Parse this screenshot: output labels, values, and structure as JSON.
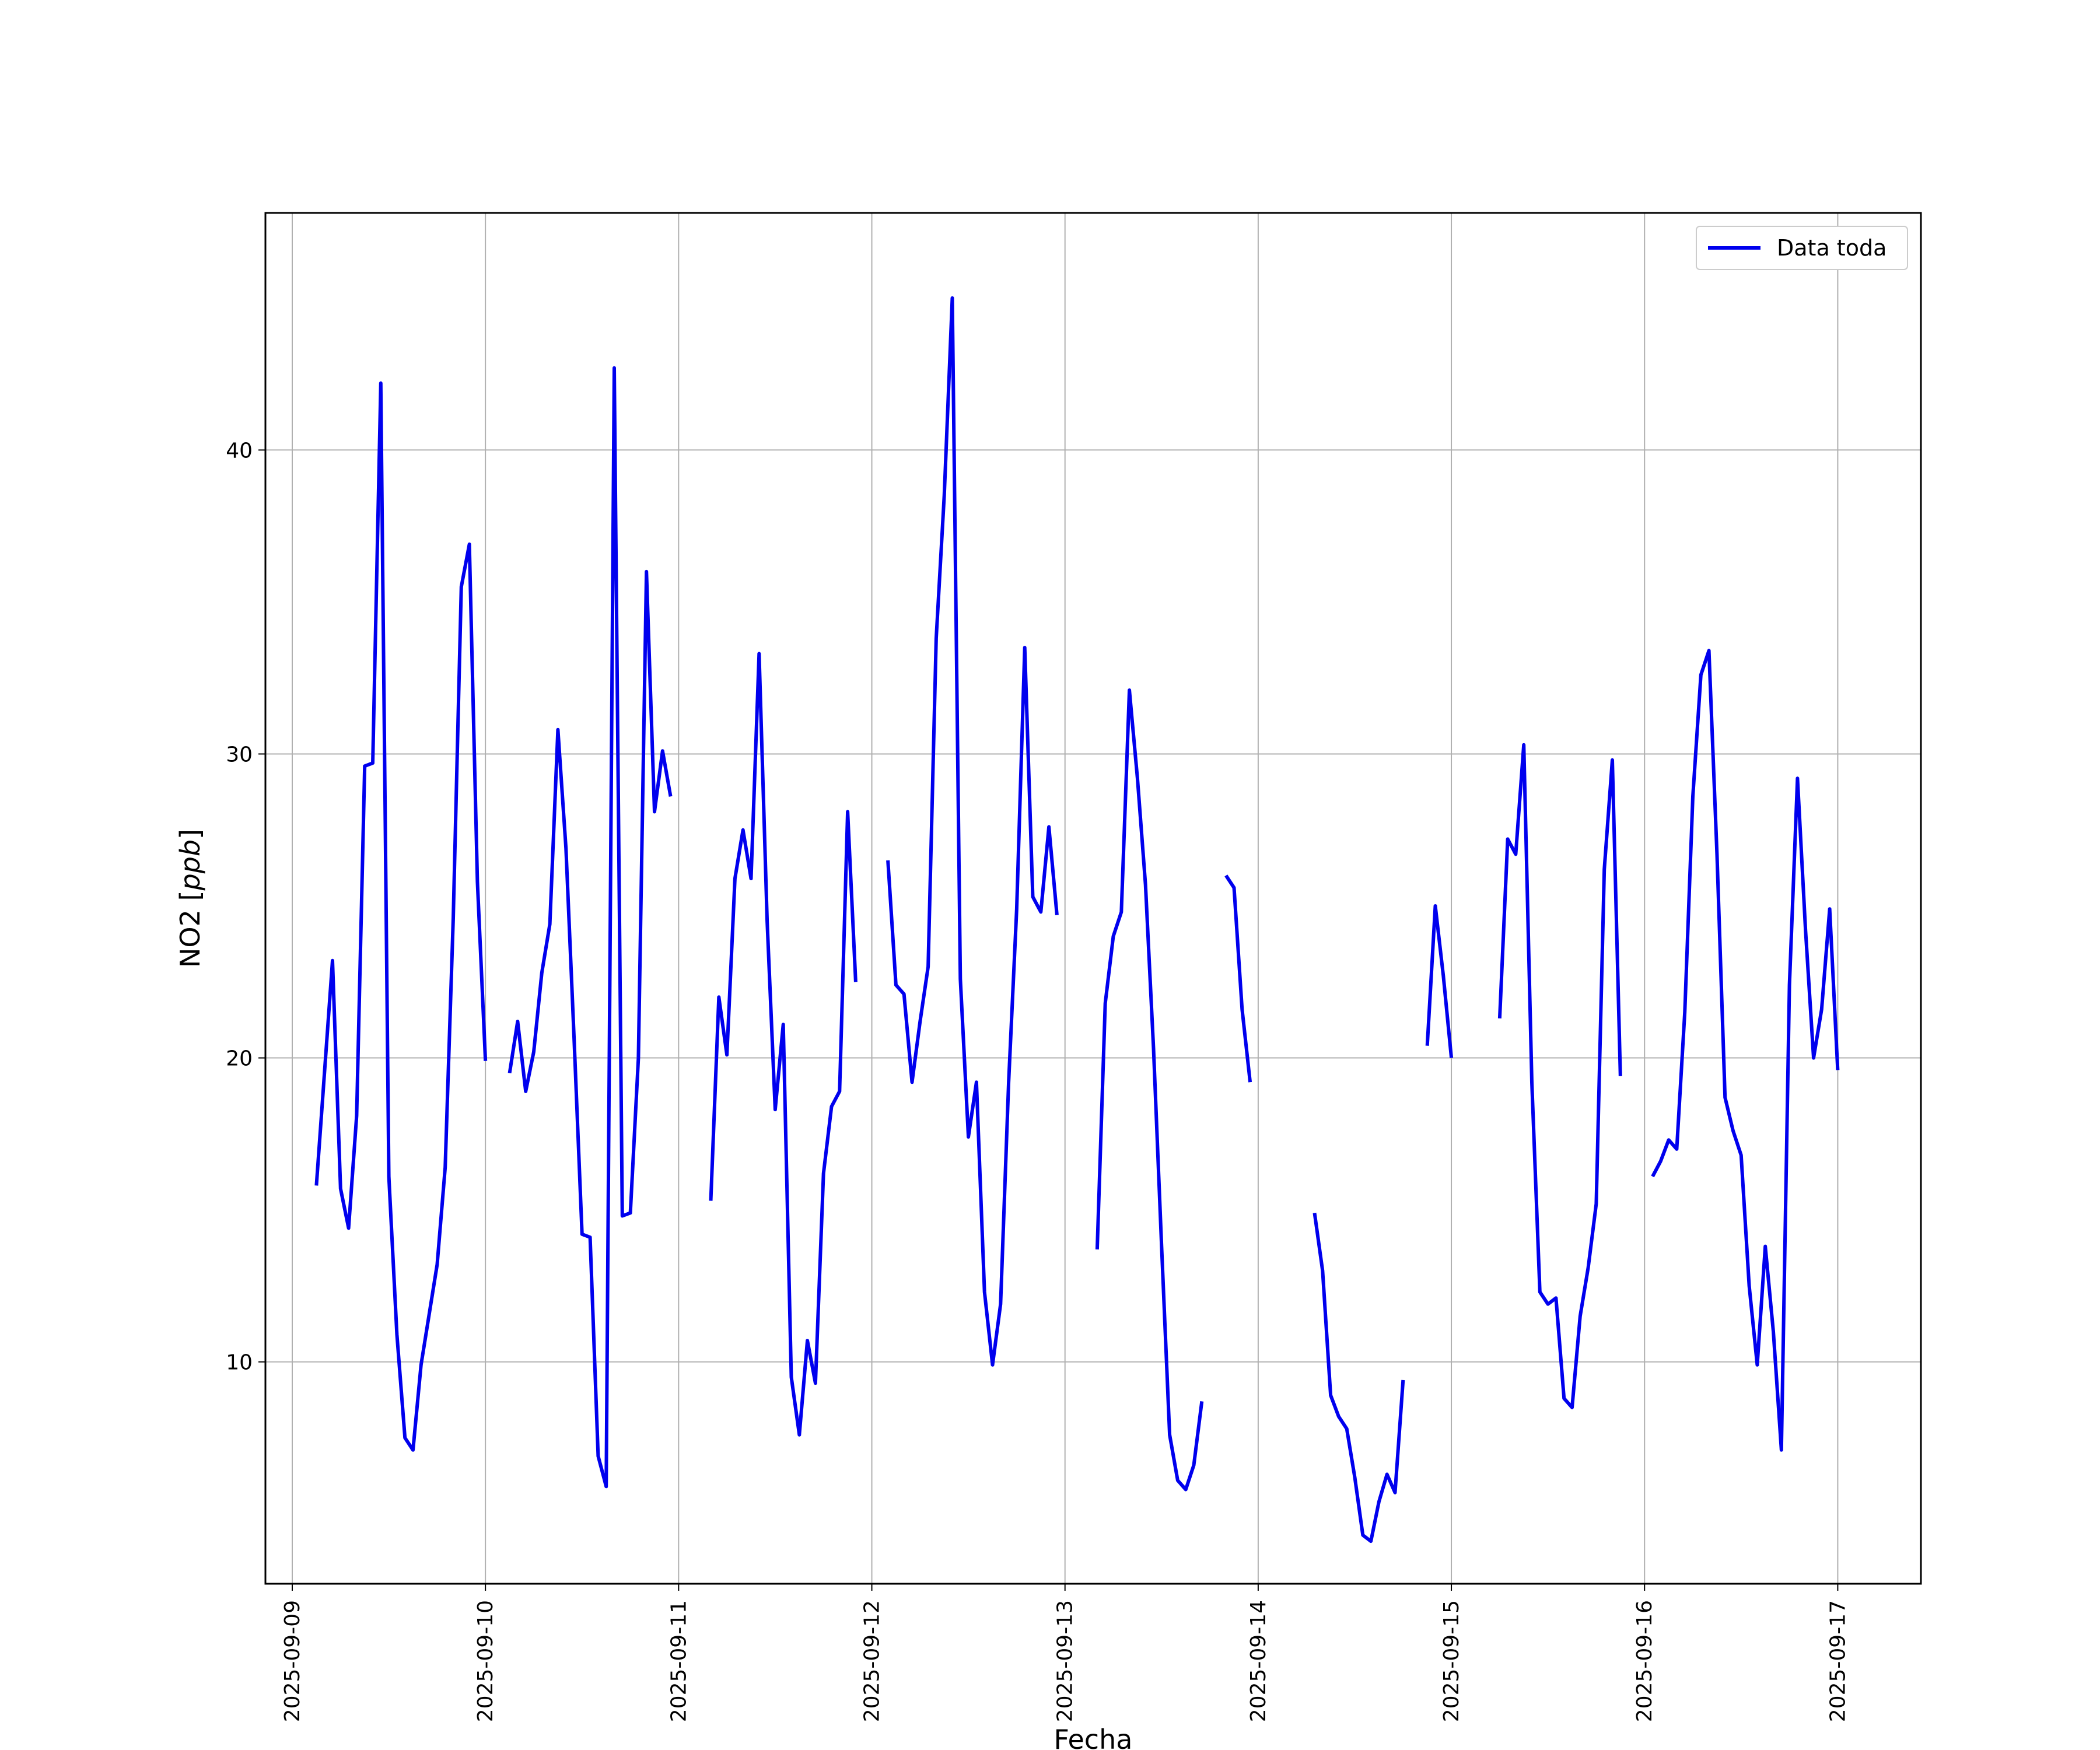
{
  "chart_data": {
    "type": "line",
    "title": "",
    "xlabel": "Fecha",
    "ylabel": "NO2 [ppb]",
    "ylabel_base": "NO2 ",
    "ylabel_unit": "ppb",
    "xlim": [
      "2025-09-08T20:40",
      "2025-09-17T10:20"
    ],
    "ylim": [
      2.7,
      47.8
    ],
    "x_ticks": [
      "2025-09-09",
      "2025-09-10",
      "2025-09-11",
      "2025-09-12",
      "2025-09-13",
      "2025-09-14",
      "2025-09-15",
      "2025-09-16",
      "2025-09-17"
    ],
    "y_ticks": [
      10,
      20,
      30,
      40
    ],
    "grid": true,
    "legend_position": "top-right",
    "color": "#0000ee",
    "series": [
      {
        "name": "Data toda",
        "segments": [
          [
            [
              "2025-09-09T03:00",
              15.8
            ],
            [
              "2025-09-09T05:00",
              23.2
            ],
            [
              "2025-09-09T06:00",
              15.7
            ],
            [
              "2025-09-09T07:00",
              14.4
            ],
            [
              "2025-09-09T08:00",
              18.1
            ],
            [
              "2025-09-09T09:00",
              29.6
            ],
            [
              "2025-09-09T10:00",
              29.7
            ],
            [
              "2025-09-09T11:00",
              42.2
            ],
            [
              "2025-09-09T12:00",
              16.1
            ],
            [
              "2025-09-09T13:00",
              10.9
            ],
            [
              "2025-09-09T14:00",
              7.5
            ],
            [
              "2025-09-09T15:00",
              7.1
            ],
            [
              "2025-09-09T16:00",
              9.9
            ],
            [
              "2025-09-09T18:00",
              13.2
            ],
            [
              "2025-09-09T19:00",
              16.4
            ],
            [
              "2025-09-09T20:00",
              24.6
            ],
            [
              "2025-09-09T21:00",
              35.5
            ],
            [
              "2025-09-09T22:00",
              36.9
            ],
            [
              "2025-09-09T23:00",
              25.8
            ],
            [
              "2025-09-10T00:00",
              19.9
            ]
          ],
          [
            [
              "2025-09-10T03:00",
              19.5
            ],
            [
              "2025-09-10T04:00",
              21.2
            ],
            [
              "2025-09-10T05:00",
              18.9
            ],
            [
              "2025-09-10T06:00",
              20.2
            ],
            [
              "2025-09-10T07:00",
              22.8
            ],
            [
              "2025-09-10T08:00",
              24.4
            ],
            [
              "2025-09-10T09:00",
              30.8
            ],
            [
              "2025-09-10T10:00",
              26.9
            ],
            [
              "2025-09-10T11:00",
              20.7
            ],
            [
              "2025-09-10T12:00",
              14.2
            ],
            [
              "2025-09-10T13:00",
              14.1
            ],
            [
              "2025-09-10T14:00",
              6.9
            ],
            [
              "2025-09-10T15:00",
              5.9
            ],
            [
              "2025-09-10T16:00",
              42.7
            ],
            [
              "2025-09-10T17:00",
              14.8
            ],
            [
              "2025-09-10T18:00",
              14.9
            ],
            [
              "2025-09-10T19:00",
              20.0
            ],
            [
              "2025-09-10T20:00",
              36.0
            ],
            [
              "2025-09-10T21:00",
              28.1
            ],
            [
              "2025-09-10T22:00",
              30.1
            ],
            [
              "2025-09-10T23:00",
              28.6
            ]
          ],
          [
            [
              "2025-09-11T04:00",
              15.3
            ],
            [
              "2025-09-11T05:00",
              22.0
            ],
            [
              "2025-09-11T06:00",
              20.1
            ],
            [
              "2025-09-11T07:00",
              25.9
            ],
            [
              "2025-09-11T08:00",
              27.5
            ],
            [
              "2025-09-11T09:00",
              25.9
            ],
            [
              "2025-09-11T10:00",
              33.3
            ],
            [
              "2025-09-11T11:00",
              24.5
            ],
            [
              "2025-09-11T12:00",
              18.3
            ],
            [
              "2025-09-11T13:00",
              21.1
            ],
            [
              "2025-09-11T14:00",
              9.5
            ],
            [
              "2025-09-11T15:00",
              7.6
            ],
            [
              "2025-09-11T16:00",
              10.7
            ],
            [
              "2025-09-11T17:00",
              9.3
            ],
            [
              "2025-09-11T18:00",
              16.2
            ],
            [
              "2025-09-11T19:00",
              18.4
            ],
            [
              "2025-09-11T20:00",
              18.9
            ],
            [
              "2025-09-11T21:00",
              28.1
            ],
            [
              "2025-09-11T22:00",
              22.5
            ]
          ],
          [
            [
              "2025-09-12T02:00",
              26.5
            ],
            [
              "2025-09-12T03:00",
              22.4
            ],
            [
              "2025-09-12T04:00",
              22.1
            ],
            [
              "2025-09-12T05:00",
              19.2
            ],
            [
              "2025-09-12T06:00",
              21.2
            ],
            [
              "2025-09-12T07:00",
              23.0
            ],
            [
              "2025-09-12T08:00",
              33.8
            ],
            [
              "2025-09-12T09:00",
              38.5
            ],
            [
              "2025-09-12T10:00",
              45.0
            ],
            [
              "2025-09-12T11:00",
              22.6
            ],
            [
              "2025-09-12T12:00",
              17.4
            ],
            [
              "2025-09-12T13:00",
              19.2
            ],
            [
              "2025-09-12T14:00",
              12.3
            ],
            [
              "2025-09-12T15:00",
              9.9
            ],
            [
              "2025-09-12T16:00",
              11.9
            ],
            [
              "2025-09-12T17:00",
              19.2
            ],
            [
              "2025-09-12T18:00",
              24.9
            ],
            [
              "2025-09-12T19:00",
              33.5
            ],
            [
              "2025-09-12T20:00",
              25.3
            ],
            [
              "2025-09-12T21:00",
              24.8
            ],
            [
              "2025-09-12T22:00",
              27.6
            ],
            [
              "2025-09-12T23:00",
              24.7
            ]
          ],
          [
            [
              "2025-09-13T04:00",
              13.7
            ],
            [
              "2025-09-13T05:00",
              21.8
            ],
            [
              "2025-09-13T06:00",
              24.0
            ],
            [
              "2025-09-13T07:00",
              24.8
            ],
            [
              "2025-09-13T08:00",
              32.1
            ],
            [
              "2025-09-13T09:00",
              29.2
            ],
            [
              "2025-09-13T10:00",
              25.7
            ],
            [
              "2025-09-13T11:00",
              20.3
            ],
            [
              "2025-09-13T12:00",
              13.8
            ],
            [
              "2025-09-13T13:00",
              7.6
            ],
            [
              "2025-09-13T14:00",
              6.1
            ],
            [
              "2025-09-13T15:00",
              5.8
            ],
            [
              "2025-09-13T16:00",
              6.6
            ],
            [
              "2025-09-13T17:00",
              8.7
            ]
          ],
          [
            [
              "2025-09-13T20:00",
              26.0
            ],
            [
              "2025-09-13T21:00",
              25.6
            ],
            [
              "2025-09-13T22:00",
              21.6
            ],
            [
              "2025-09-13T23:00",
              19.2
            ]
          ],
          [
            [
              "2025-09-14T07:00",
              14.9
            ],
            [
              "2025-09-14T08:00",
              13.0
            ],
            [
              "2025-09-14T09:00",
              8.9
            ],
            [
              "2025-09-14T10:00",
              8.2
            ],
            [
              "2025-09-14T11:00",
              7.8
            ],
            [
              "2025-09-14T12:00",
              6.2
            ],
            [
              "2025-09-14T13:00",
              4.3
            ],
            [
              "2025-09-14T14:00",
              4.1
            ],
            [
              "2025-09-14T15:00",
              5.4
            ],
            [
              "2025-09-14T16:00",
              6.3
            ],
            [
              "2025-09-14T17:00",
              5.7
            ],
            [
              "2025-09-14T18:00",
              9.4
            ]
          ],
          [
            [
              "2025-09-14T21:00",
              20.4
            ],
            [
              "2025-09-14T22:00",
              25.0
            ],
            [
              "2025-09-14T23:00",
              22.7
            ],
            [
              "2025-09-15T00:00",
              20.0
            ]
          ],
          [
            [
              "2025-09-15T06:00",
              21.3
            ],
            [
              "2025-09-15T07:00",
              27.2
            ],
            [
              "2025-09-15T08:00",
              26.7
            ],
            [
              "2025-09-15T09:00",
              30.3
            ],
            [
              "2025-09-15T10:00",
              19.2
            ],
            [
              "2025-09-15T11:00",
              12.3
            ],
            [
              "2025-09-15T12:00",
              11.9
            ],
            [
              "2025-09-15T13:00",
              12.1
            ],
            [
              "2025-09-15T14:00",
              8.8
            ],
            [
              "2025-09-15T15:00",
              8.5
            ],
            [
              "2025-09-15T16:00",
              11.5
            ],
            [
              "2025-09-15T17:00",
              13.1
            ],
            [
              "2025-09-15T18:00",
              15.2
            ],
            [
              "2025-09-15T19:00",
              26.2
            ],
            [
              "2025-09-15T20:00",
              29.8
            ],
            [
              "2025-09-15T21:00",
              19.4
            ]
          ],
          [
            [
              "2025-09-16T01:00",
              16.1
            ],
            [
              "2025-09-16T02:00",
              16.6
            ],
            [
              "2025-09-16T03:00",
              17.3
            ],
            [
              "2025-09-16T04:00",
              17.0
            ],
            [
              "2025-09-16T05:00",
              21.5
            ],
            [
              "2025-09-16T06:00",
              28.6
            ],
            [
              "2025-09-16T07:00",
              32.6
            ],
            [
              "2025-09-16T08:00",
              33.4
            ],
            [
              "2025-09-16T09:00",
              26.7
            ],
            [
              "2025-09-16T10:00",
              18.7
            ],
            [
              "2025-09-16T11:00",
              17.6
            ],
            [
              "2025-09-16T12:00",
              16.8
            ],
            [
              "2025-09-16T13:00",
              12.5
            ],
            [
              "2025-09-16T14:00",
              9.9
            ],
            [
              "2025-09-16T15:00",
              13.8
            ],
            [
              "2025-09-16T16:00",
              11.0
            ],
            [
              "2025-09-16T17:00",
              7.1
            ],
            [
              "2025-09-16T18:00",
              22.4
            ],
            [
              "2025-09-16T19:00",
              29.2
            ],
            [
              "2025-09-16T20:00",
              24.2
            ],
            [
              "2025-09-16T21:00",
              20.0
            ],
            [
              "2025-09-16T22:00",
              21.6
            ],
            [
              "2025-09-16T23:00",
              24.9
            ],
            [
              "2025-09-17T00:00",
              19.6
            ]
          ]
        ]
      }
    ]
  }
}
